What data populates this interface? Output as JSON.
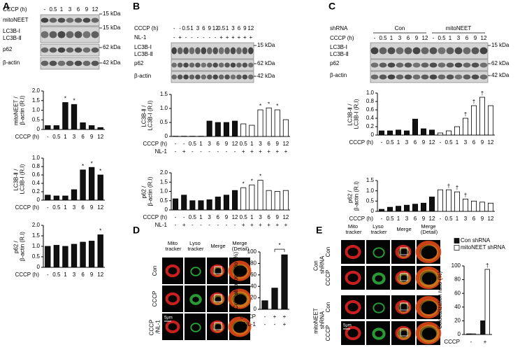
{
  "panels": {
    "A": {
      "letter": "A",
      "blot": {
        "header": [
          {
            "name": "CCCP (h)",
            "labels": [
              "-",
              "0.5",
              "1",
              "3",
              "6",
              "9",
              "12"
            ]
          }
        ],
        "bands": [
          "mitoNEET",
          "LC3B-Ⅰ",
          "LC3B-Ⅱ",
          "p62",
          "β-actin"
        ],
        "kda": [
          "15 kDa",
          "15 kDa",
          "62 kDa",
          "42 kDa"
        ]
      },
      "charts": [
        {
          "type": "bar",
          "ylabel": "mitoNEET / β-actin (R.I)",
          "ylim": [
            0,
            2
          ],
          "yticks": [
            0,
            0.5,
            {
              "value": 1,
              "label": "1.0"
            },
            1.5,
            {
              "value": 2,
              "label": "2.0"
            }
          ],
          "series": [
            {
              "color": "#111111",
              "values": [
                0.2,
                0.2,
                1.4,
                1.3,
                0.35,
                0.2,
                0.1
              ],
              "sig": [
                null,
                null,
                "*",
                "*",
                null,
                null,
                null
              ]
            }
          ],
          "xrows": [
            {
              "name": "CCCP (h)",
              "labels": [
                "-",
                "0.5",
                "1",
                "3",
                "6",
                "9",
                "12"
              ]
            }
          ]
        },
        {
          "type": "bar",
          "ylabel": "LC3B-Ⅱ / LC3B-Ⅰ (R.I)",
          "ylim": [
            0,
            1
          ],
          "yticks": [
            0,
            0.2,
            0.4,
            0.6,
            0.8,
            {
              "value": 1,
              "label": "1.0"
            }
          ],
          "series": [
            {
              "color": "#111111",
              "values": [
                0.12,
                0.1,
                0.1,
                0.25,
                0.72,
                0.78,
                0.6
              ],
              "sig": [
                null,
                null,
                null,
                null,
                "*",
                "*",
                "*"
              ]
            }
          ],
          "xrows": [
            {
              "name": "CCCP (h)",
              "labels": [
                "-",
                "0.5",
                "1",
                "3",
                "6",
                "9",
                "12"
              ]
            }
          ]
        },
        {
          "type": "bar",
          "ylabel": "p62 / β-actin (R.I)",
          "ylim": [
            0,
            2
          ],
          "yticks": [
            0,
            0.5,
            {
              "value": 1,
              "label": "1.0"
            },
            1.5,
            {
              "value": 2,
              "label": "2.0"
            }
          ],
          "series": [
            {
              "color": "#111111",
              "values": [
                1.0,
                1.05,
                1.0,
                1.1,
                1.2,
                1.25,
                1.55
              ],
              "sig": [
                null,
                null,
                null,
                null,
                null,
                null,
                "*"
              ]
            }
          ],
          "xrows": [
            {
              "name": "CCCP (h)",
              "labels": [
                "-",
                "0.5",
                "1",
                "3",
                "6",
                "9",
                "12"
              ]
            }
          ]
        }
      ]
    },
    "B": {
      "letter": "B",
      "blot": {
        "header": [
          {
            "name": "CCCP (h)",
            "labels": [
              "-",
              "-",
              "0.5",
              "1",
              "3",
              "6",
              "9",
              "12",
              "0.5",
              "1",
              "3",
              "6",
              "9",
              "12"
            ]
          },
          {
            "name": "NL-1",
            "labels": [
              "-",
              "+",
              "-",
              "-",
              "-",
              "-",
              "-",
              "-",
              "+",
              "+",
              "+",
              "+",
              "+",
              "+"
            ]
          }
        ],
        "bands": [
          "LC3B-Ⅰ",
          "LC3B-Ⅱ",
          "p62",
          "β-actin"
        ],
        "kda": [
          "15 kDa",
          "62 kDa",
          "42 kDa"
        ]
      },
      "charts": [
        {
          "type": "bar",
          "ylabel": "LC3B-Ⅱ / LC3B-Ⅰ (R.I)",
          "ylim": [
            0,
            1.5
          ],
          "yticks": [
            0,
            0.5,
            {
              "value": 1,
              "label": "1.0"
            },
            1.5
          ],
          "series": [
            {
              "color": "#111111",
              "values": [
                0.01,
                0.01,
                0.01,
                0.01,
                0.55,
                0.5,
                0.5,
                0.55
              ],
              "sig": [
                null,
                null,
                null,
                null,
                null,
                null,
                null,
                null
              ]
            },
            {
              "color": "#ffffff",
              "values": [
                0.45,
                0.4,
                0.95,
                1.02,
                0.95,
                0.6
              ],
              "sig": [
                null,
                null,
                "*",
                "*",
                "*",
                null
              ]
            }
          ],
          "xrows": [
            {
              "name": "CCCP (h)",
              "labels": [
                "-",
                "-",
                "0.5",
                "1",
                "3",
                "6",
                "9",
                "12",
                "0.5",
                "1",
                "3",
                "6",
                "9",
                "12"
              ]
            },
            {
              "name": "NL-1",
              "labels": [
                "-",
                "+",
                "-",
                "-",
                "-",
                "-",
                "-",
                "-",
                "+",
                "+",
                "+",
                "+",
                "+",
                "+"
              ]
            }
          ]
        },
        {
          "type": "bar",
          "ylabel": "p62 / β-actin (R.I)",
          "ylim": [
            0,
            2
          ],
          "yticks": [
            0,
            0.5,
            {
              "value": 1,
              "label": "1.0"
            },
            1.5,
            {
              "value": 2,
              "label": "2.0"
            }
          ],
          "series": [
            {
              "color": "#111111",
              "values": [
                0.6,
                0.8,
                0.5,
                0.5,
                0.55,
                0.7,
                0.8,
                1.05
              ],
              "sig": [
                null,
                null,
                null,
                null,
                null,
                null,
                null,
                null
              ]
            },
            {
              "color": "#ffffff",
              "values": [
                1.2,
                1.35,
                1.6,
                1.05,
                1.0,
                1.05
              ],
              "sig": [
                "*",
                "*",
                "*",
                null,
                null,
                null
              ]
            }
          ],
          "xrows": [
            {
              "name": "CCCP (h)",
              "labels": [
                "-",
                "-",
                "0.5",
                "1",
                "3",
                "6",
                "9",
                "12",
                "0.5",
                "1",
                "3",
                "6",
                "9",
                "12"
              ]
            },
            {
              "name": "NL-1",
              "labels": [
                "-",
                "+",
                "-",
                "-",
                "-",
                "-",
                "-",
                "-",
                "+",
                "+",
                "+",
                "+",
                "+",
                "+"
              ]
            }
          ]
        }
      ]
    },
    "C": {
      "letter": "C",
      "blot": {
        "groups": {
          "name": "shRNA",
          "labels": [
            "Con",
            "mitoNEET"
          ]
        },
        "header": [
          {
            "name": "CCCP (h)",
            "labels": [
              "-",
              "0.5",
              "1",
              "3",
              "6",
              "9",
              "12",
              "-",
              "0.5",
              "1",
              "3",
              "6",
              "9",
              "12"
            ]
          }
        ],
        "bands": [
          "LC3B-Ⅰ",
          "LC3B-Ⅱ",
          "p62",
          "β-actin"
        ],
        "kda": [
          "15 kDa",
          "62 kDa",
          "42 kDa"
        ]
      },
      "charts": [
        {
          "type": "bar",
          "ylabel": "LC3B-Ⅱ / LC3B-Ⅰ (R.I)",
          "ylim": [
            0,
            1
          ],
          "yticks": [
            0,
            0.2,
            0.4,
            0.6,
            0.8,
            {
              "value": 1,
              "label": "1.0"
            }
          ],
          "series": [
            {
              "color": "#111111",
              "values": [
                0.1,
                0.1,
                0.12,
                0.1,
                0.38,
                0.15,
                0.12
              ],
              "sig": [
                null,
                null,
                null,
                null,
                null,
                null,
                null
              ]
            },
            {
              "color": "#ffffff",
              "values": [
                0.05,
                0.1,
                0.2,
                0.4,
                0.7,
                0.9,
                0.7
              ],
              "sig": [
                null,
                null,
                null,
                "†",
                "†",
                "†",
                null
              ]
            }
          ],
          "xrows": [
            {
              "name": "CCCP (h)",
              "labels": [
                "-",
                "0.5",
                "1",
                "3",
                "6",
                "9",
                "12",
                "-",
                "0.5",
                "1",
                "3",
                "6",
                "9",
                "12"
              ]
            }
          ]
        },
        {
          "type": "bar",
          "ylabel": "p62 / β-actin (R.I)",
          "ylim": [
            0,
            1.5
          ],
          "yticks": [
            0,
            0.5,
            {
              "value": 1,
              "label": "1.0"
            },
            1.5
          ],
          "series": [
            {
              "color": "#111111",
              "values": [
                0.1,
                0.2,
                0.25,
                0.3,
                0.35,
                0.4,
                0.7
              ],
              "sig": [
                null,
                null,
                null,
                null,
                null,
                null,
                null
              ]
            },
            {
              "color": "#ffffff",
              "values": [
                1.05,
                1.05,
                0.95,
                0.6,
                0.5,
                0.45,
                0.4
              ],
              "sig": [
                null,
                "†",
                "†",
                "†",
                null,
                null,
                null
              ]
            }
          ],
          "xrows": [
            {
              "name": "CCCP (h)",
              "labels": [
                "-",
                "0.5",
                "1",
                "3",
                "6",
                "9",
                "12",
                "-",
                "0.5",
                "1",
                "3",
                "6",
                "9",
                "12"
              ]
            }
          ]
        }
      ]
    },
    "D": {
      "letter": "D",
      "columns": [
        "Mito tracker",
        "Lyso tracker",
        "Merge",
        "Merge (Detail)"
      ],
      "rows": [
        "Con",
        "CCCP",
        "CCCP /NL-1"
      ],
      "scale": "5μm",
      "chart": {
        "type": "bar",
        "ylabel": "Colocalization ratio (%)",
        "ylim": [
          0,
          100
        ],
        "yticks": [
          0,
          20,
          40,
          60,
          80,
          100
        ],
        "bracket": true,
        "series": [
          {
            "color": "#111111",
            "values": [
              15,
              37,
              95
            ],
            "sig": [
              null,
              null,
              "*"
            ]
          }
        ],
        "xrows": [
          {
            "name": "CCCP",
            "labels": [
              "-",
              "+",
              "+"
            ]
          },
          {
            "name": "NL-1",
            "labels": [
              "-",
              "-",
              "+"
            ]
          }
        ]
      }
    },
    "E": {
      "letter": "E",
      "columns": [
        "Mito tracker",
        "Lyso tracker",
        "Merge",
        "Merge (Detail)"
      ],
      "groups": [
        "Con shRNA",
        "mitoNEET shRNA"
      ],
      "rows": [
        "Con",
        "CCCP",
        "Con",
        "CCCP"
      ],
      "scale": "5μm",
      "chart": {
        "type": "bar",
        "ylabel": "Colocalization ratio (%)",
        "ylim": [
          0,
          100
        ],
        "yticks": [
          0,
          20,
          40,
          60,
          80,
          100
        ],
        "grouped": true,
        "legend": true,
        "series": [
          {
            "name": "Con shRNA",
            "color": "#111111",
            "values": [
              1,
              20
            ],
            "sig": [
              null,
              null
            ]
          },
          {
            "name": "mitoNEET shRNA",
            "color": "#ffffff",
            "values": [
              1,
              95
            ],
            "sig": [
              null,
              "†"
            ]
          }
        ],
        "xrows": [
          {
            "name": "CCCP",
            "labels": [
              "-",
              "+"
            ]
          }
        ]
      }
    }
  }
}
